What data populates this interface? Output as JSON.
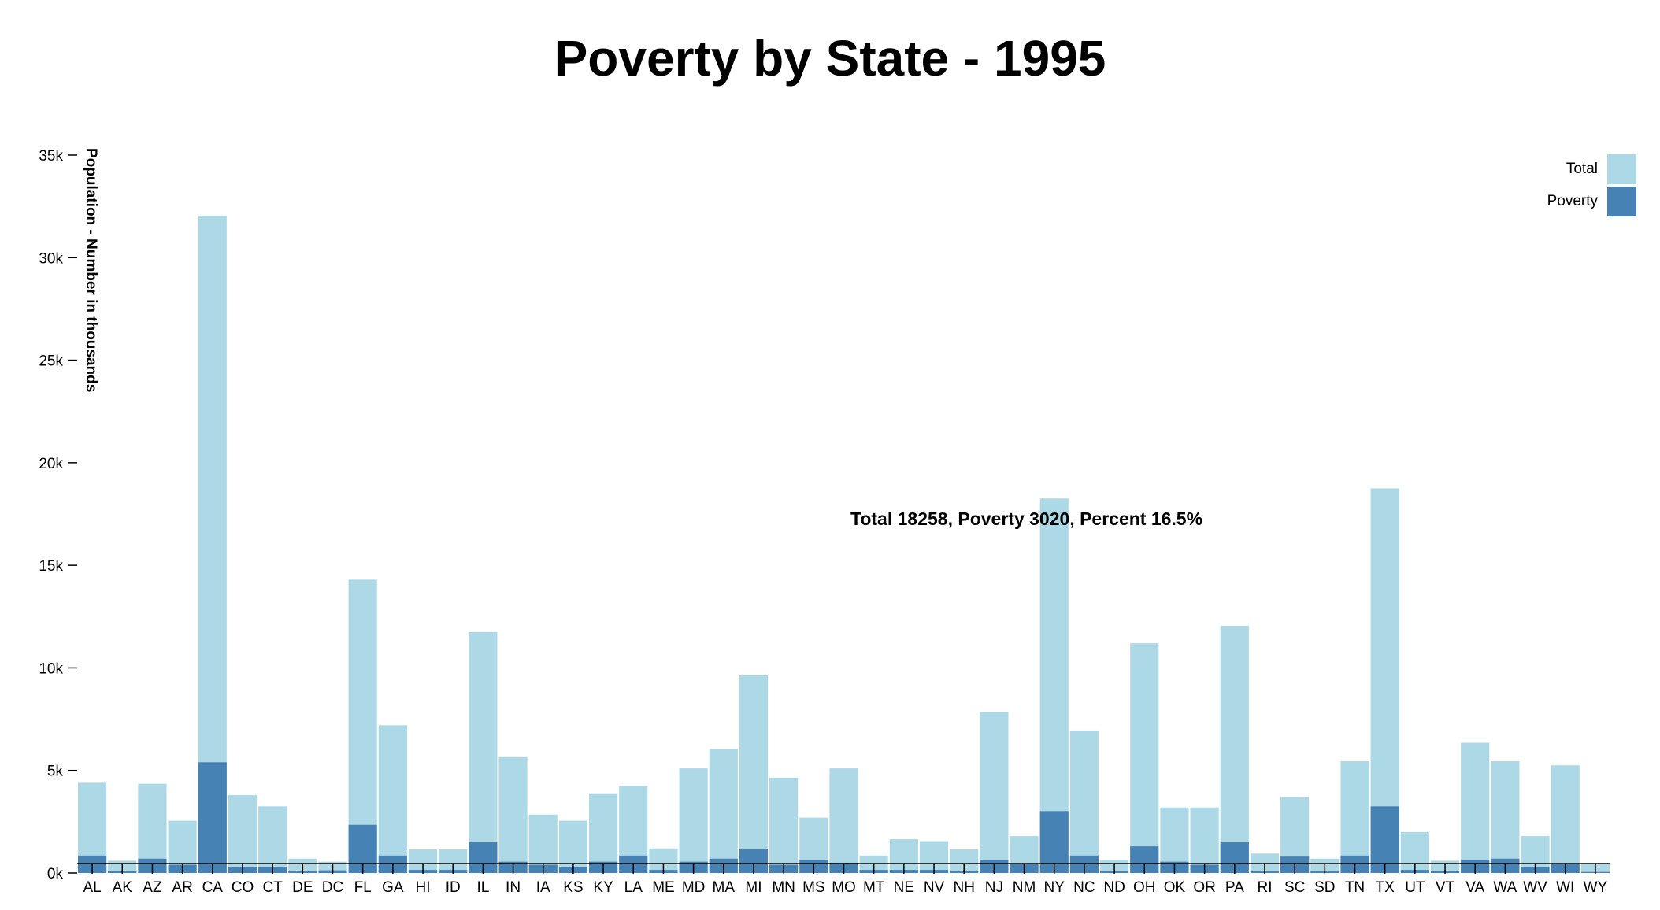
{
  "chart_data": {
    "type": "bar",
    "title": "Poverty by State - 1995",
    "xlabel": "",
    "ylabel": "Population - Number in thousands",
    "ylim": [
      0,
      35000
    ],
    "y_ticks": [
      {
        "value": 0,
        "label": "0k"
      },
      {
        "value": 5000,
        "label": "5k"
      },
      {
        "value": 10000,
        "label": "10k"
      },
      {
        "value": 15000,
        "label": "15k"
      },
      {
        "value": 20000,
        "label": "20k"
      },
      {
        "value": 25000,
        "label": "25k"
      },
      {
        "value": 30000,
        "label": "30k"
      },
      {
        "value": 35000,
        "label": "35k"
      }
    ],
    "categories": [
      "AL",
      "AK",
      "AZ",
      "AR",
      "CA",
      "CO",
      "CT",
      "DE",
      "DC",
      "FL",
      "GA",
      "HI",
      "ID",
      "IL",
      "IN",
      "IA",
      "KS",
      "KY",
      "LA",
      "ME",
      "MD",
      "MA",
      "MI",
      "MN",
      "MS",
      "MO",
      "MT",
      "NE",
      "NV",
      "NH",
      "NJ",
      "NM",
      "NY",
      "NC",
      "ND",
      "OH",
      "OK",
      "OR",
      "PA",
      "RI",
      "SC",
      "SD",
      "TN",
      "TX",
      "UT",
      "VT",
      "VA",
      "WA",
      "WV",
      "WI",
      "WY"
    ],
    "series": [
      {
        "name": "Total",
        "color": "#add8e6",
        "values": [
          4400,
          600,
          4350,
          2550,
          32050,
          3800,
          3250,
          700,
          550,
          14300,
          7200,
          1150,
          1150,
          11750,
          5650,
          2850,
          2550,
          3850,
          4250,
          1200,
          5100,
          6050,
          9650,
          4650,
          2700,
          5100,
          850,
          1650,
          1550,
          1150,
          7850,
          1800,
          18258,
          6950,
          650,
          11200,
          3200,
          3200,
          12050,
          950,
          3700,
          700,
          5450,
          18750,
          2000,
          600,
          6350,
          5450,
          1800,
          5250,
          450
        ]
      },
      {
        "name": "Poverty",
        "color": "#4682b4",
        "values": [
          850,
          80,
          700,
          400,
          5400,
          300,
          300,
          80,
          130,
          2350,
          850,
          150,
          150,
          1500,
          550,
          400,
          300,
          550,
          850,
          150,
          550,
          700,
          1150,
          400,
          650,
          500,
          150,
          150,
          150,
          80,
          650,
          450,
          3020,
          850,
          80,
          1300,
          550,
          400,
          1500,
          80,
          800,
          80,
          850,
          3250,
          150,
          80,
          650,
          700,
          300,
          450,
          50
        ]
      }
    ],
    "legend": {
      "placement": "top-right",
      "items": [
        {
          "label": "Total",
          "color": "#add8e6"
        },
        {
          "label": "Poverty",
          "color": "#4682b4"
        }
      ]
    },
    "tooltip": {
      "category": "NY",
      "text": "Total 18258, Poverty 3020, Percent 16.5%"
    },
    "grid": false
  }
}
